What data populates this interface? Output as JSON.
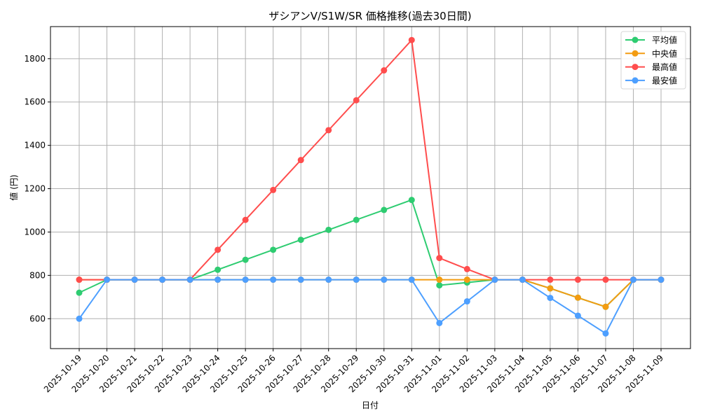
{
  "chart_data": {
    "type": "line",
    "title": "ザシアンV/S1W/SR 価格推移(過去30日間)",
    "xlabel": "日付",
    "ylabel": "値 (円)",
    "ylim": [
      462,
      1948
    ],
    "yticks": [
      600,
      800,
      1000,
      1200,
      1400,
      1600,
      1800
    ],
    "grid": true,
    "legend_position": "upper right",
    "categories": [
      "2025-10-19",
      "2025-10-20",
      "2025-10-21",
      "2025-10-22",
      "2025-10-23",
      "2025-10-24",
      "2025-10-25",
      "2025-10-26",
      "2025-10-27",
      "2025-10-28",
      "2025-10-29",
      "2025-10-30",
      "2025-10-31",
      "2025-11-01",
      "2025-11-02",
      "2025-11-03",
      "2025-11-04",
      "2025-11-05",
      "2025-11-06",
      "2025-11-07",
      "2025-11-08",
      "2025-11-09"
    ],
    "series": [
      {
        "name": "平均値",
        "color": "#2ecc71",
        "values": [
          720,
          780,
          780,
          780,
          780,
          826,
          872,
          918,
          964,
          1010,
          1056,
          1102,
          1148,
          754,
          767,
          780,
          780,
          740,
          697,
          655,
          780,
          780
        ]
      },
      {
        "name": "中央値",
        "color": "#f39c12",
        "values": [
          780,
          780,
          780,
          780,
          780,
          780,
          780,
          780,
          780,
          780,
          780,
          780,
          780,
          780,
          780,
          780,
          780,
          740,
          697,
          655,
          780,
          780
        ]
      },
      {
        "name": "最高値",
        "color": "#ff4d4d",
        "values": [
          780,
          780,
          780,
          780,
          780,
          918,
          1056,
          1194,
          1332,
          1470,
          1608,
          1746,
          1886,
          880,
          829,
          780,
          780,
          780,
          780,
          780,
          780,
          780
        ]
      },
      {
        "name": "最安値",
        "color": "#4d9fff",
        "values": [
          600,
          780,
          780,
          780,
          780,
          780,
          780,
          780,
          780,
          780,
          780,
          780,
          780,
          580,
          680,
          780,
          780,
          696,
          614,
          532,
          780,
          780
        ]
      }
    ]
  }
}
